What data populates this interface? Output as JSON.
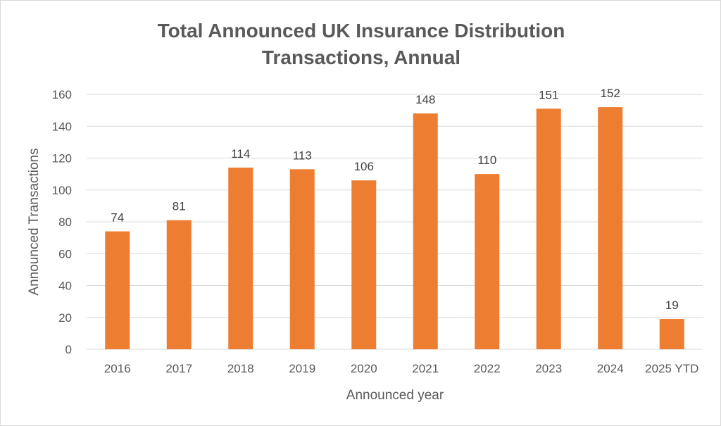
{
  "chart_data": {
    "type": "bar",
    "title_lines": [
      "Total Announced UK Insurance Distribution",
      "Transactions, Annual"
    ],
    "xlabel": "Announced year",
    "ylabel": "Announced Transactions",
    "categories": [
      "2016",
      "2017",
      "2018",
      "2019",
      "2020",
      "2021",
      "2022",
      "2023",
      "2024",
      "2025 YTD"
    ],
    "values": [
      74,
      81,
      114,
      113,
      106,
      148,
      110,
      151,
      152,
      19
    ],
    "ylim": [
      0,
      160
    ],
    "yticks": [
      0,
      20,
      40,
      60,
      80,
      100,
      120,
      140,
      160
    ],
    "grid": true,
    "legend": "none",
    "data_labels": true,
    "colors": {
      "bar": "#ED7D31",
      "grid": "#D9D9D9",
      "text": "#595959",
      "title": "#595959"
    }
  }
}
